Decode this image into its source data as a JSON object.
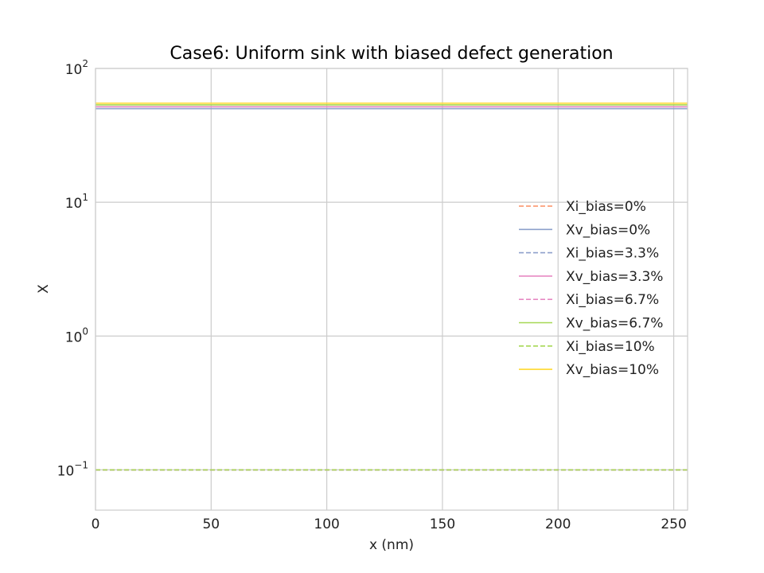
{
  "chart_data": {
    "type": "line",
    "title": "Case6: Uniform sink with biased defect generation",
    "xlabel": "x (nm)",
    "ylabel": "X",
    "xlim": [
      0,
      256
    ],
    "ylim": [
      0.05,
      100
    ],
    "yscale": "log",
    "grid": true,
    "legend_position": "center-right",
    "x": [
      0,
      256
    ],
    "x_ticks": [
      {
        "value": 0,
        "label": "0"
      },
      {
        "value": 50,
        "label": "50"
      },
      {
        "value": 100,
        "label": "100"
      },
      {
        "value": 150,
        "label": "150"
      },
      {
        "value": 200,
        "label": "200"
      },
      {
        "value": 250,
        "label": "250"
      }
    ],
    "y_ticks": [
      {
        "value": 0.1,
        "base": "10",
        "exp": "−1"
      },
      {
        "value": 1,
        "base": "10",
        "exp": "0"
      },
      {
        "value": 10,
        "base": "10",
        "exp": "1"
      },
      {
        "value": 100,
        "base": "10",
        "exp": "2"
      }
    ],
    "series": [
      {
        "name": "Xi_bias=0%",
        "values": [
          0.1,
          0.1
        ],
        "color": "#fc8d62",
        "dash": true
      },
      {
        "name": "Xv_bias=0%",
        "values": [
          50,
          50
        ],
        "color": "#8da0cb",
        "dash": false
      },
      {
        "name": "Xi_bias=3.3%",
        "values": [
          0.1,
          0.1
        ],
        "color": "#8da0cb",
        "dash": true
      },
      {
        "name": "Xv_bias=3.3%",
        "values": [
          51.7,
          51.7
        ],
        "color": "#e78ac3",
        "dash": false
      },
      {
        "name": "Xi_bias=6.7%",
        "values": [
          0.1,
          0.1
        ],
        "color": "#e78ac3",
        "dash": true
      },
      {
        "name": "Xv_bias=6.7%",
        "values": [
          53.4,
          53.4
        ],
        "color": "#a6d854",
        "dash": false
      },
      {
        "name": "Xi_bias=10%",
        "values": [
          0.1,
          0.1
        ],
        "color": "#a6d854",
        "dash": true
      },
      {
        "name": "Xv_bias=10%",
        "values": [
          55,
          55
        ],
        "color": "#ffd92f",
        "dash": false
      }
    ]
  }
}
